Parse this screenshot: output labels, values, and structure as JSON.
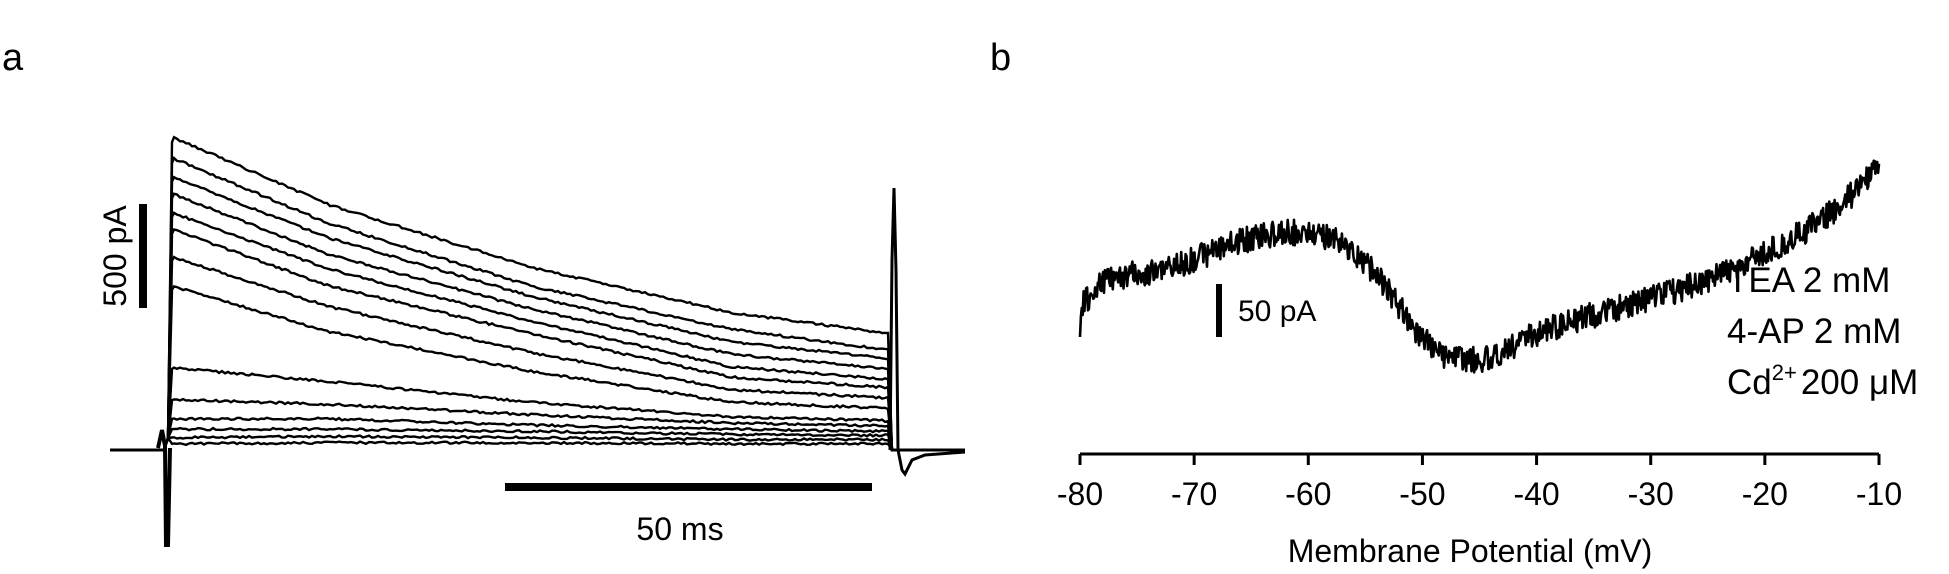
{
  "chart_data": [
    {
      "type": "line",
      "panel_label": "a",
      "description_units": {
        "scale_y": "500 pA",
        "scale_x": "50 ms"
      },
      "series_count": 14,
      "series": [
        {
          "values": [
            1480,
            1180,
            880,
            660,
            560
          ]
        },
        {
          "values": [
            1380,
            1090,
            790,
            580,
            480
          ]
        },
        {
          "values": [
            1290,
            1020,
            740,
            520,
            440
          ]
        },
        {
          "values": [
            1210,
            940,
            680,
            460,
            390
          ]
        },
        {
          "values": [
            1120,
            870,
            620,
            400,
            340
          ]
        },
        {
          "values": [
            1040,
            790,
            560,
            350,
            300
          ]
        },
        {
          "values": [
            910,
            690,
            470,
            290,
            250
          ]
        },
        {
          "values": [
            770,
            570,
            380,
            230,
            200
          ]
        },
        {
          "values": [
            390,
            330,
            230,
            160,
            140
          ]
        },
        {
          "values": [
            240,
            220,
            170,
            130,
            115
          ]
        },
        {
          "values": [
            150,
            150,
            120,
            100,
            90
          ]
        },
        {
          "values": [
            100,
            100,
            90,
            75,
            70
          ]
        },
        {
          "values": [
            60,
            65,
            60,
            50,
            50
          ]
        },
        {
          "values": [
            30,
            35,
            35,
            30,
            30
          ]
        }
      ]
    },
    {
      "type": "line",
      "panel_label": "b",
      "xlabel": "Membrane Potential (mV)",
      "x_ticks": [
        "-80",
        "-70",
        "-60",
        "-50",
        "-40",
        "-30",
        "-20",
        "-10"
      ],
      "xlim": [
        -80,
        -10
      ],
      "scale_y": "50 pA",
      "annotation_lines": [
        "TEA 2 mM",
        "4-AP 2 mM",
        "200 μM"
      ],
      "cd_text": "Cd",
      "cd_sup": "2+",
      "series": [
        {
          "x": [
            -80,
            -78,
            -76,
            -74,
            -72,
            -70,
            -68,
            -66,
            -64,
            -62,
            -60,
            -58,
            -56,
            -54,
            -52,
            -50,
            -48,
            -46,
            -44,
            -42,
            -40,
            -38,
            -36,
            -34,
            -32,
            -30,
            -28,
            -26,
            -24,
            -22,
            -20,
            -18,
            -16,
            -14,
            -12,
            -10
          ],
          "y": [
            50,
            75,
            80,
            82,
            88,
            95,
            104,
            112,
            117,
            120,
            120,
            115,
            102,
            80,
            50,
            20,
            3,
            0,
            2,
            14,
            25,
            32,
            40,
            45,
            52,
            58,
            65,
            72,
            80,
            90,
            100,
            112,
            125,
            140,
            160,
            185
          ]
        }
      ]
    }
  ]
}
